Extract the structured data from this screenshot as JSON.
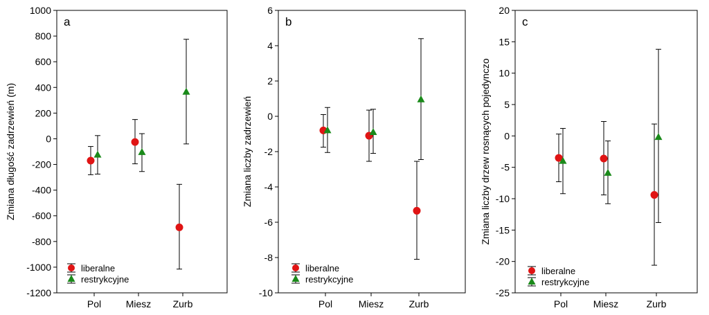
{
  "legend_labels": [
    "liberalne",
    "restrykcyjne"
  ],
  "colors": {
    "liberalne": "#e01414",
    "restrykcyjne": "#1a8a1a"
  },
  "chart_data": [
    {
      "type": "scatter",
      "panel_label": "a",
      "ylabel": "Zmiana długość zadrzewień (m)",
      "categories": [
        "Pol",
        "Miesz",
        "Zurb"
      ],
      "ylim": [
        -1200,
        1000
      ],
      "yticks": [
        1000,
        800,
        600,
        400,
        200,
        0,
        -200,
        -400,
        -600,
        -800,
        -1000,
        -1200
      ],
      "series": [
        {
          "name": "liberalne",
          "marker": "circle",
          "values": [
            -170,
            -25,
            -690
          ],
          "lower": [
            -280,
            -195,
            -1015
          ],
          "upper": [
            -60,
            150,
            -355
          ]
        },
        {
          "name": "restrykcyjne",
          "marker": "triangle",
          "values": [
            -125,
            -105,
            365
          ],
          "lower": [
            -275,
            -255,
            -40
          ],
          "upper": [
            25,
            40,
            775
          ]
        }
      ]
    },
    {
      "type": "scatter",
      "panel_label": "b",
      "ylabel": "Zmiana liczby zadrzewień",
      "categories": [
        "Pol",
        "Miesz",
        "Zurb"
      ],
      "ylim": [
        -10,
        6
      ],
      "yticks": [
        6,
        4,
        2,
        0,
        -2,
        -4,
        -6,
        -8,
        -10
      ],
      "series": [
        {
          "name": "liberalne",
          "marker": "circle",
          "values": [
            -0.8,
            -1.1,
            -5.35
          ],
          "lower": [
            -1.75,
            -2.55,
            -8.1
          ],
          "upper": [
            0.1,
            0.35,
            -2.55
          ]
        },
        {
          "name": "restrykcyjne",
          "marker": "triangle",
          "values": [
            -0.8,
            -0.9,
            0.95
          ],
          "lower": [
            -2.05,
            -2.1,
            -2.45
          ],
          "upper": [
            0.5,
            0.4,
            4.4
          ]
        }
      ]
    },
    {
      "type": "scatter",
      "panel_label": "c",
      "ylabel": "Zmiana liczby drzew rosnących pojedynczo",
      "categories": [
        "Pol",
        "Miesz",
        "Zurb"
      ],
      "ylim": [
        -25,
        20
      ],
      "yticks": [
        20,
        15,
        10,
        5,
        0,
        -5,
        -10,
        -15,
        -20,
        -25
      ],
      "series": [
        {
          "name": "liberalne",
          "marker": "circle",
          "values": [
            -3.5,
            -3.6,
            -9.4
          ],
          "lower": [
            -7.3,
            -9.4,
            -20.6
          ],
          "upper": [
            0.3,
            2.3,
            1.9
          ]
        },
        {
          "name": "restrykcyjne",
          "marker": "triangle",
          "values": [
            -4.0,
            -5.9,
            -0.2
          ],
          "lower": [
            -9.2,
            -10.8,
            -13.8
          ],
          "upper": [
            1.2,
            -0.8,
            13.8
          ]
        }
      ]
    }
  ]
}
